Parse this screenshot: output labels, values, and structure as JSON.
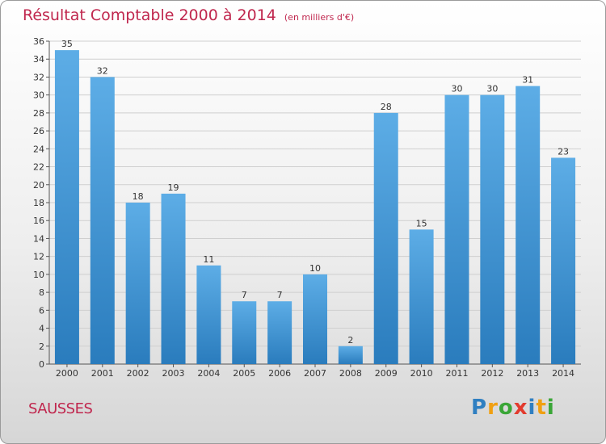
{
  "header": {
    "title": "Résultat Comptable 2000 à 2014",
    "subtitle": "(en milliers d'€)"
  },
  "footer": {
    "commune": "SAUSSES",
    "logo_text": "Proxiti",
    "logo_colors": [
      "#2f7fc1",
      "#f0a012",
      "#3aa637",
      "#e23b2e",
      "#2f7fc1",
      "#f0a012",
      "#3aa637"
    ]
  },
  "colors": {
    "accent": "#c0274e",
    "bar_top": "#5dade6",
    "bar_bottom": "#2a7cbd",
    "grid": "#cfcfcf"
  },
  "chart_data": {
    "type": "bar",
    "title": "Résultat Comptable 2000 à 2014",
    "subtitle": "(en milliers d'€)",
    "xlabel": "",
    "ylabel": "",
    "categories": [
      "2000",
      "2001",
      "2002",
      "2003",
      "2004",
      "2005",
      "2006",
      "2007",
      "2008",
      "2009",
      "2010",
      "2011",
      "2012",
      "2013",
      "2014"
    ],
    "values": [
      35,
      32,
      18,
      19,
      11,
      7,
      7,
      10,
      2,
      28,
      15,
      30,
      30,
      31,
      23
    ],
    "ylim": [
      0,
      36
    ],
    "yticks": [
      0,
      2,
      4,
      6,
      8,
      10,
      12,
      14,
      16,
      18,
      20,
      22,
      24,
      26,
      28,
      30,
      32,
      34,
      36
    ],
    "grid": true,
    "legend": "none"
  }
}
